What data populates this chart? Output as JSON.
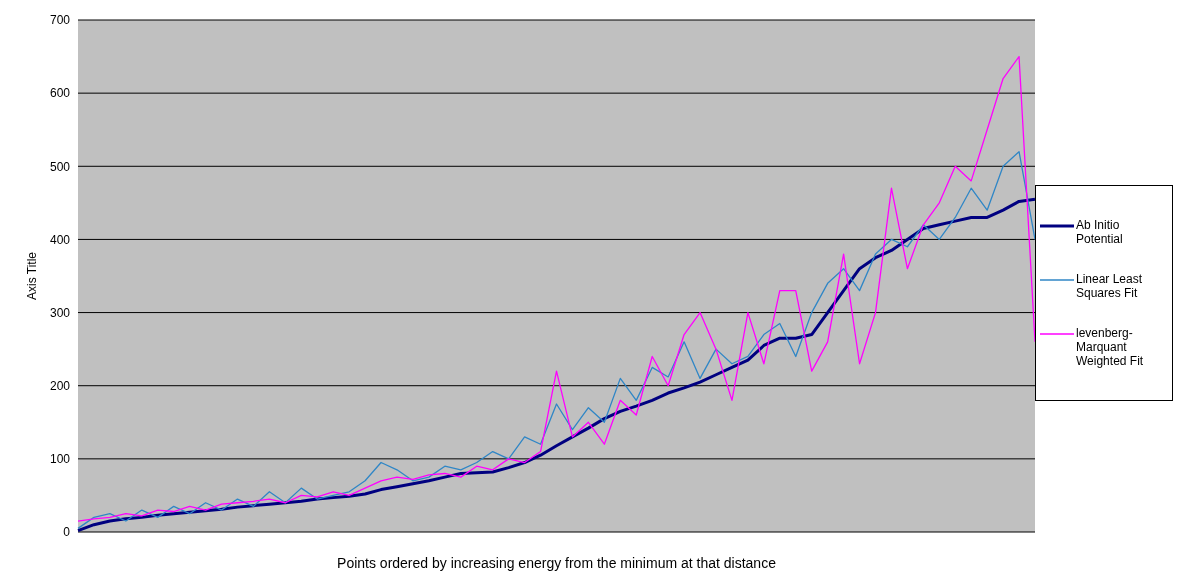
{
  "chart_data": {
    "type": "line",
    "xlabel": "Points ordered by increasing energy from the minimum  at that distance",
    "ylabel": "Axis Title",
    "categories": [
      null,
      null,
      null,
      null,
      null,
      null,
      null,
      null,
      null,
      null,
      null,
      null,
      null,
      null,
      null,
      null,
      null,
      null,
      null,
      null,
      null,
      null,
      null,
      null,
      null,
      null,
      null,
      null,
      null,
      null,
      null,
      null,
      null,
      null,
      null,
      null,
      null,
      null,
      null,
      null,
      null,
      null,
      null,
      null,
      null,
      null,
      null,
      null,
      null,
      null,
      null,
      null,
      null,
      null,
      null,
      null,
      null,
      null,
      null,
      null,
      null
    ],
    "series": [
      {
        "name": "Ab Initio Potential",
        "color": "#000080",
        "values": [
          2,
          10,
          15,
          18,
          20,
          23,
          25,
          27,
          29,
          31,
          34,
          36,
          38,
          40,
          42,
          45,
          47,
          49,
          52,
          58,
          62,
          66,
          70,
          75,
          80,
          81,
          82,
          88,
          95,
          105,
          118,
          130,
          142,
          155,
          165,
          172,
          180,
          190,
          197,
          205,
          215,
          225,
          235,
          255,
          265,
          265,
          270,
          300,
          330,
          360,
          375,
          385,
          400,
          415,
          420,
          425,
          430,
          430,
          440,
          452,
          455
        ]
      },
      {
        "name": "Linear Least Squares Fit",
        "color": "#2f86c6",
        "values": [
          5,
          20,
          25,
          15,
          30,
          20,
          35,
          25,
          40,
          30,
          45,
          35,
          55,
          40,
          60,
          45,
          50,
          55,
          70,
          95,
          85,
          70,
          75,
          90,
          85,
          95,
          110,
          100,
          130,
          120,
          175,
          140,
          170,
          150,
          210,
          180,
          225,
          212,
          260,
          210,
          250,
          230,
          240,
          270,
          285,
          240,
          300,
          340,
          360,
          330,
          380,
          400,
          390,
          420,
          400,
          430,
          470,
          440,
          500,
          520,
          400
        ]
      },
      {
        "name": "levenberg-Marquant Weighted Fit",
        "color": "#ff00ff",
        "values": [
          15,
          18,
          20,
          25,
          22,
          30,
          28,
          35,
          30,
          38,
          40,
          42,
          45,
          40,
          50,
          48,
          55,
          50,
          60,
          70,
          75,
          72,
          78,
          80,
          75,
          90,
          85,
          100,
          95,
          110,
          220,
          130,
          150,
          120,
          180,
          160,
          240,
          200,
          270,
          300,
          250,
          180,
          300,
          230,
          330,
          330,
          220,
          260,
          380,
          230,
          300,
          470,
          360,
          420,
          450,
          500,
          480,
          550,
          620,
          650,
          260
        ]
      }
    ],
    "ylim": [
      0,
      700
    ],
    "yticks": [
      0,
      100,
      200,
      300,
      400,
      500,
      600,
      700
    ],
    "grid": "y",
    "legend": "right",
    "tick_labels": "y"
  }
}
